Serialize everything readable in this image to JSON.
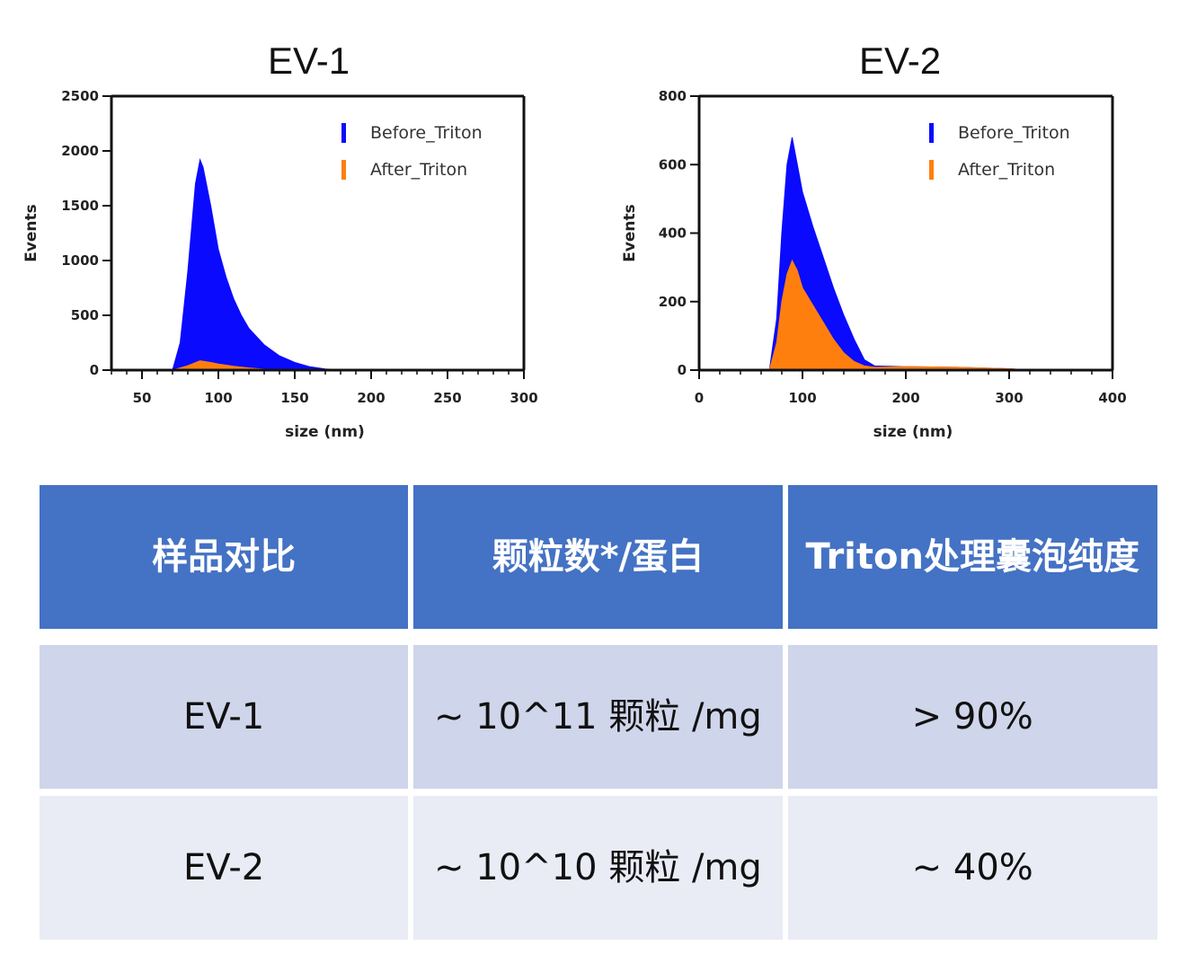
{
  "chart_data": [
    {
      "type": "area",
      "title": "EV-1",
      "xlabel": "size (nm)",
      "ylabel": "Events",
      "xlim": [
        30,
        300
      ],
      "ylim": [
        0,
        2500
      ],
      "xticks": [
        "50",
        "100",
        "150",
        "200",
        "250",
        "300"
      ],
      "yticks": [
        "0",
        "500",
        "1000",
        "1500",
        "2000",
        "2500"
      ],
      "legend": "top-right",
      "series": [
        {
          "name": "Before_Triton",
          "color": "#0a0aff",
          "x": [
            70,
            75,
            80,
            85,
            88,
            90,
            95,
            100,
            105,
            110,
            115,
            120,
            130,
            140,
            150,
            160,
            170,
            180,
            190
          ],
          "y": [
            0,
            250,
            900,
            1700,
            1920,
            1850,
            1500,
            1100,
            850,
            650,
            500,
            380,
            230,
            130,
            70,
            30,
            10,
            3,
            0
          ]
        },
        {
          "name": "After_Triton",
          "color": "#ff7f0e",
          "x": [
            70,
            80,
            88,
            95,
            100,
            110,
            120,
            130,
            140
          ],
          "y": [
            0,
            40,
            85,
            70,
            55,
            35,
            20,
            8,
            0
          ]
        }
      ]
    },
    {
      "type": "area",
      "title": "EV-2",
      "xlabel": "size (nm)",
      "ylabel": "Events",
      "xlim": [
        0,
        400
      ],
      "ylim": [
        0,
        800
      ],
      "xticks": [
        "0",
        "100",
        "200",
        "300",
        "400"
      ],
      "yticks": [
        "0",
        "200",
        "400",
        "600",
        "800"
      ],
      "legend": "top-right",
      "series": [
        {
          "name": "Before_Triton",
          "color": "#0a0aff",
          "x": [
            68,
            75,
            80,
            85,
            90,
            95,
            100,
            110,
            120,
            130,
            140,
            150,
            160,
            170,
            200,
            250,
            300,
            320
          ],
          "y": [
            0,
            150,
            400,
            600,
            680,
            600,
            520,
            420,
            330,
            240,
            160,
            90,
            30,
            12,
            10,
            8,
            4,
            0
          ]
        },
        {
          "name": "After_Triton",
          "color": "#ff7f0e",
          "x": [
            68,
            75,
            80,
            85,
            90,
            95,
            100,
            110,
            120,
            130,
            140,
            150,
            160,
            170,
            200,
            250,
            300,
            320
          ],
          "y": [
            0,
            80,
            200,
            280,
            320,
            290,
            240,
            190,
            140,
            90,
            50,
            25,
            12,
            8,
            10,
            8,
            4,
            0
          ]
        }
      ]
    }
  ],
  "table": {
    "headers": [
      "样品对比",
      "颗粒数*/蛋白",
      "Triton处理囊泡纯度"
    ],
    "rows": [
      {
        "sample": "EV-1",
        "particles": "~ 10^11 颗粒 /mg",
        "purity": "> 90%"
      },
      {
        "sample": "EV-2",
        "particles": "~ 10^10 颗粒 /mg",
        "purity": "~ 40%"
      }
    ]
  }
}
